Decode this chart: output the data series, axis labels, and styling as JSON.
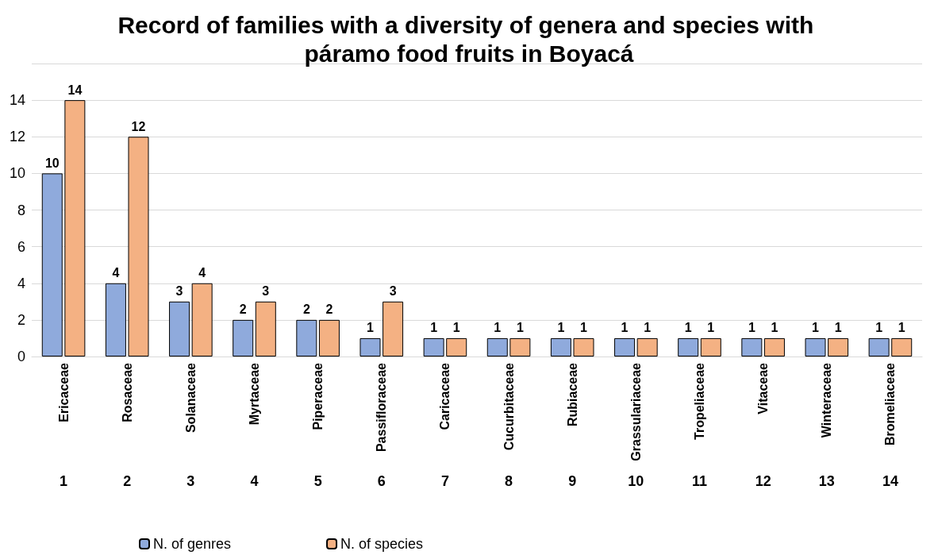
{
  "chart_data": {
    "type": "bar",
    "title": "Record of families with a diversity of genera and species with páramo food fruits in Boyacá",
    "categories": [
      "Ericaceae",
      "Rosaceae",
      "Solanaceae",
      "Myrtaceae",
      "Piperaceae",
      "Passifloraceae",
      "Caricaceae",
      "Cucurbitaceae",
      "Rubiaceae",
      "Grassulariaceae",
      "Tropeliaceae",
      "Vitaceae",
      "Winteraceae",
      "Bromeliaceae"
    ],
    "series": [
      {
        "name": "N. of genres",
        "color": "#8faadc",
        "values": [
          10,
          4,
          3,
          2,
          2,
          1,
          1,
          1,
          1,
          1,
          1,
          1,
          1,
          1
        ]
      },
      {
        "name": "N. of species",
        "color": "#f4b183",
        "values": [
          14,
          12,
          4,
          3,
          2,
          3,
          1,
          1,
          1,
          1,
          1,
          1,
          1,
          1
        ]
      }
    ],
    "annotations": [
      "1",
      "2",
      "3",
      "4",
      "5",
      "6",
      "7",
      "8",
      "9",
      "10",
      "11",
      "12",
      "13",
      "14"
    ],
    "ylim": [
      0,
      16
    ],
    "yticks": [
      0,
      2,
      4,
      6,
      8,
      10,
      12,
      14,
      {
        "value": 16,
        "label": null
      }
    ],
    "grid": "y",
    "legend": "bottom",
    "data_labels": true
  }
}
